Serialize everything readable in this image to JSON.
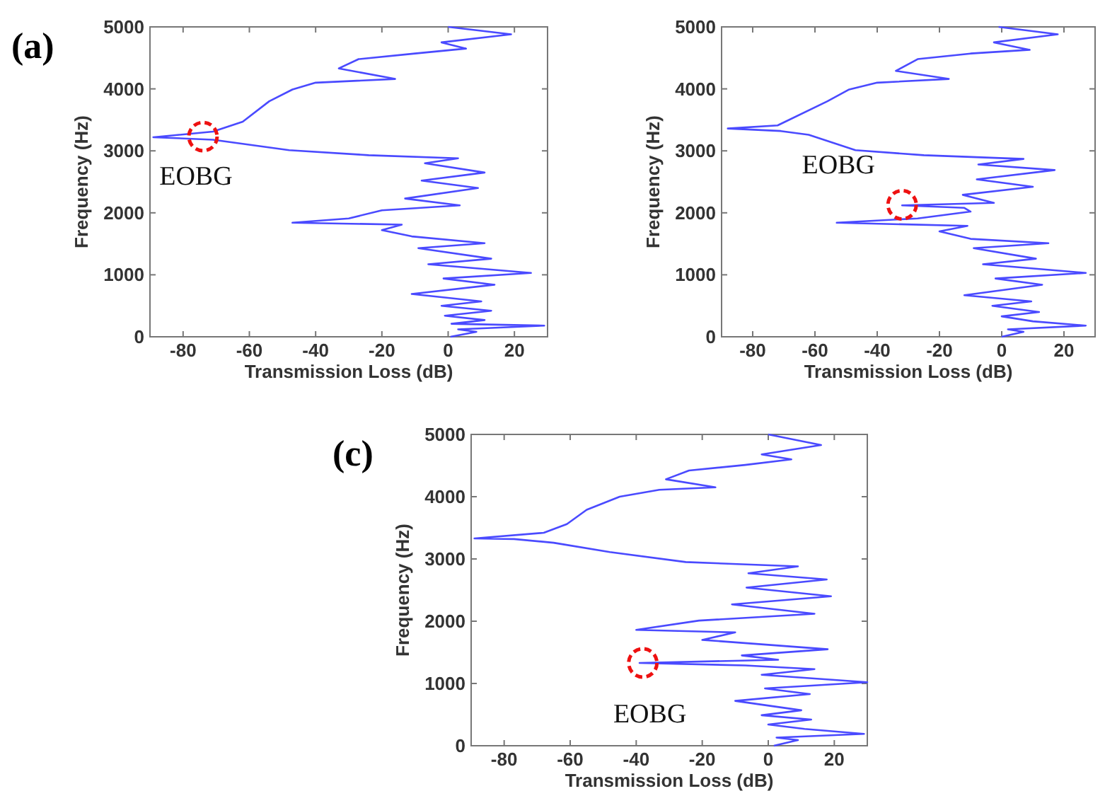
{
  "chart_data": [
    {
      "type": "line",
      "title": "(a)",
      "xlabel": "Transmission Loss (dB)",
      "ylabel": "Frequency (Hz)",
      "xlim": [
        -90,
        30
      ],
      "ylim": [
        0,
        5000
      ],
      "xticks": [
        -80,
        -60,
        -40,
        -20,
        0,
        20
      ],
      "yticks": [
        0,
        1000,
        2000,
        3000,
        4000,
        5000
      ],
      "series": [
        {
          "color": "#4a4aff",
          "x": [
            0,
            19,
            -2,
            5.4,
            -10,
            -27,
            -33,
            -16,
            -40,
            -47,
            -54,
            -62,
            -71,
            -89,
            -71,
            -48,
            -24,
            3,
            -7,
            11,
            -8,
            9,
            -13,
            3.5,
            -20,
            -30,
            -47,
            -14,
            -20,
            -11,
            11,
            -9,
            13,
            -6,
            25,
            -1.4,
            14,
            -11,
            10,
            -2,
            13,
            -1,
            11,
            1,
            29,
            3,
            8.5,
            0.7
          ],
          "values": [
            5000,
            4880,
            4750,
            4650,
            4570,
            4480,
            4330,
            4160,
            4100,
            3990,
            3800,
            3470,
            3310,
            3220,
            3180,
            3010,
            2930,
            2880,
            2800,
            2650,
            2520,
            2400,
            2230,
            2120,
            2040,
            1910,
            1840,
            1810,
            1720,
            1620,
            1510,
            1430,
            1260,
            1170,
            1030,
            940,
            840,
            690,
            570,
            500,
            420,
            340,
            270,
            210,
            180,
            120,
            80,
            0
          ]
        }
      ],
      "annotations": [
        {
          "text": "EOBG",
          "x": -74,
          "y": 3230
        }
      ]
    },
    {
      "type": "line",
      "xlabel": "Transmission Loss (dB)",
      "ylabel": "Frequency (Hz)",
      "xlim": [
        -90,
        30
      ],
      "ylim": [
        0,
        5000
      ],
      "xticks": [
        -80,
        -60,
        -40,
        -20,
        0,
        20
      ],
      "yticks": [
        0,
        1000,
        2000,
        3000,
        4000,
        5000
      ],
      "series": [
        {
          "color": "#4a4aff",
          "x": [
            -1,
            18,
            -2.5,
            9,
            -10,
            -27,
            -34,
            -17,
            -40,
            -49,
            -56,
            -72,
            -88,
            -71,
            -62,
            -47,
            -25,
            7,
            -7.5,
            17,
            -8,
            10,
            -12.5,
            -2.5,
            -32,
            -12,
            -10,
            -27,
            -53,
            -11,
            -20,
            -10,
            15,
            -9,
            11,
            -6,
            27,
            -2,
            13,
            -12,
            9.5,
            -3,
            12,
            0,
            10,
            27,
            2,
            7,
            0
          ],
          "values": [
            5000,
            4880,
            4750,
            4630,
            4570,
            4480,
            4290,
            4160,
            4100,
            3990,
            3800,
            3410,
            3360,
            3320,
            3260,
            3010,
            2930,
            2870,
            2780,
            2690,
            2540,
            2420,
            2290,
            2160,
            2120,
            2080,
            2020,
            1910,
            1840,
            1790,
            1700,
            1580,
            1510,
            1430,
            1260,
            1170,
            1030,
            940,
            840,
            670,
            570,
            500,
            400,
            330,
            250,
            180,
            120,
            80,
            0
          ]
        }
      ],
      "annotations": [
        {
          "text": "EOBG",
          "x": -32,
          "y": 2130
        }
      ]
    },
    {
      "type": "line",
      "title": "(c)",
      "xlabel": "Transmission Loss (dB)",
      "ylabel": "Frequency (Hz)",
      "xlim": [
        -90,
        30
      ],
      "ylim": [
        0,
        5000
      ],
      "xticks": [
        -80,
        -60,
        -40,
        -20,
        0,
        20
      ],
      "yticks": [
        0,
        1000,
        2000,
        3000,
        4000,
        5000
      ],
      "series": [
        {
          "color": "#4a4aff",
          "x": [
            0,
            16,
            -2,
            7,
            -7,
            -24,
            -31,
            -16,
            -33,
            -45,
            -55,
            -61,
            -68,
            -89,
            -77,
            -65,
            -48,
            -25,
            9,
            -6,
            17.7,
            -6.6,
            19,
            -11,
            14,
            -21,
            -40,
            -10,
            -20,
            18,
            -8,
            3,
            -39,
            -7,
            14,
            -2,
            30,
            -1,
            12.6,
            -10,
            10,
            -2,
            13,
            0,
            11,
            29,
            2.5,
            9,
            1.7
          ],
          "values": [
            5000,
            4830,
            4680,
            4600,
            4510,
            4420,
            4280,
            4150,
            4110,
            4000,
            3790,
            3560,
            3420,
            3330,
            3320,
            3260,
            3110,
            2950,
            2880,
            2770,
            2670,
            2540,
            2400,
            2270,
            2120,
            2010,
            1860,
            1820,
            1700,
            1550,
            1450,
            1380,
            1330,
            1290,
            1230,
            1140,
            1020,
            920,
            830,
            720,
            570,
            490,
            420,
            340,
            270,
            190,
            130,
            90,
            0
          ]
        }
      ],
      "annotations": [
        {
          "text": "EOBG",
          "x": -38,
          "y": 1330
        }
      ]
    }
  ]
}
